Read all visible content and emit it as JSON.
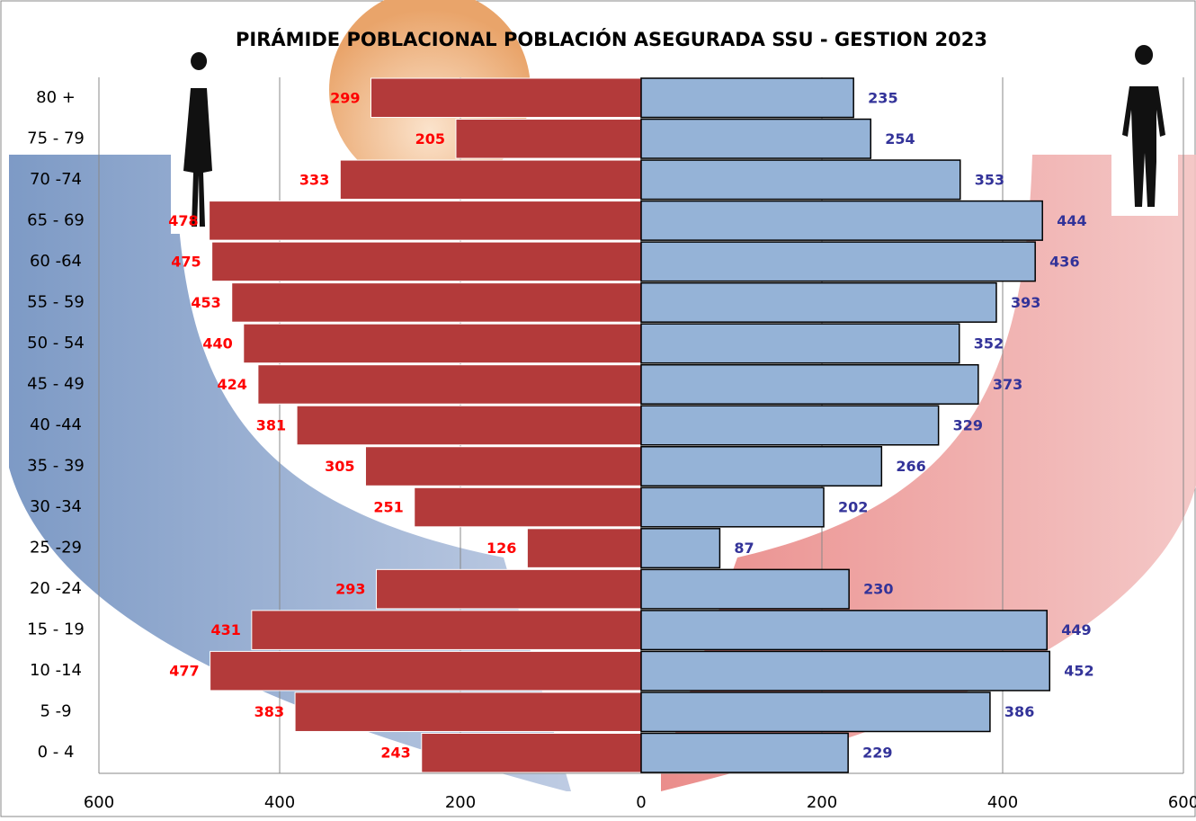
{
  "chart_data": {
    "type": "pyramid",
    "title": "PIRÁMIDE POBLACIONAL POBLACIÓN ASEGURADA SSU - GESTION 2023",
    "categories": [
      "80 +",
      "75 - 79",
      "70 -74",
      "65 - 69",
      "60 -64",
      "55 - 59",
      "50 - 54",
      "45 - 49",
      "40 -44",
      "35 - 39",
      "30 -34",
      "25 -29",
      "20 -24",
      "15 - 19",
      "10 -14",
      "5 -9",
      "0 - 4"
    ],
    "series": [
      {
        "side": "left",
        "color": "#b33a3a",
        "label_color": "#ff0000",
        "values": [
          299,
          205,
          333,
          478,
          475,
          453,
          440,
          424,
          381,
          305,
          251,
          126,
          293,
          431,
          477,
          383,
          243
        ]
      },
      {
        "side": "right",
        "color": "#95b3d7",
        "label_color": "#333399",
        "values": [
          235,
          254,
          353,
          444,
          436,
          393,
          352,
          373,
          329,
          266,
          202,
          87,
          230,
          449,
          452,
          386,
          229
        ]
      }
    ],
    "xlim": [
      -600,
      600
    ],
    "xticks": [
      {
        "value": -600,
        "label": "600"
      },
      {
        "value": -400,
        "label": "400"
      },
      {
        "value": -200,
        "label": "200"
      },
      0,
      200,
      400,
      {
        "value": 600,
        "label": "600"
      }
    ],
    "grid": true
  }
}
